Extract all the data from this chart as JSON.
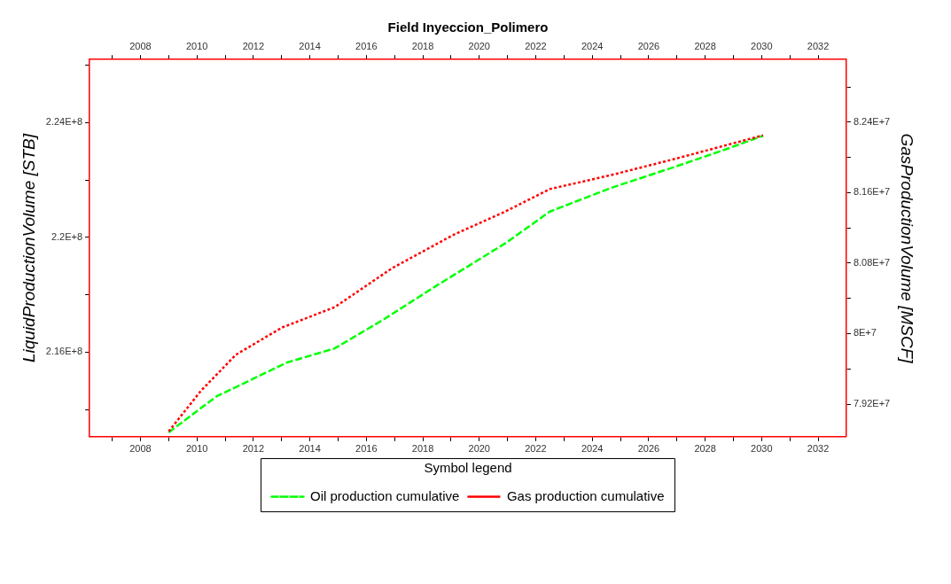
{
  "chart_data": {
    "type": "line",
    "title": "Field Inyeccion_Polimero",
    "ylabel": "LiquidProductionVolume [STB]",
    "y2label": "GasProductionVolume [MSCF]",
    "legend_title": "Symbol legend",
    "legend": "bottom",
    "grid": false,
    "marker": "none",
    "xlim": [
      2006.2,
      2033
    ],
    "xticks": [
      {
        "value": 2007,
        "label": null
      },
      2008,
      {
        "value": 2009,
        "label": null
      },
      2010,
      {
        "value": 2011,
        "label": null
      },
      2012,
      {
        "value": 2013,
        "label": null
      },
      2014,
      {
        "value": 2015,
        "label": null
      },
      2016,
      {
        "value": 2017,
        "label": null
      },
      2018,
      {
        "value": 2019,
        "label": null
      },
      2020,
      {
        "value": 2021,
        "label": null
      },
      2022,
      {
        "value": 2023,
        "label": null
      },
      2024,
      {
        "value": 2025,
        "label": null
      },
      2026,
      {
        "value": 2027,
        "label": null
      },
      2028,
      {
        "value": 2029,
        "label": null
      },
      2030,
      {
        "value": 2031,
        "label": null
      },
      2032
    ],
    "x2lim": [
      2006.2,
      2033
    ],
    "x2ticks": [
      {
        "value": 2007,
        "label": null
      },
      2008,
      {
        "value": 2009,
        "label": null
      },
      2010,
      {
        "value": 2011,
        "label": null
      },
      2012,
      {
        "value": 2013,
        "label": null
      },
      2014,
      {
        "value": 2015,
        "label": null
      },
      2016,
      {
        "value": 2017,
        "label": null
      },
      2018,
      {
        "value": 2019,
        "label": null
      },
      2020,
      {
        "value": 2021,
        "label": null
      },
      2022,
      {
        "value": 2023,
        "label": null
      },
      2024,
      {
        "value": 2025,
        "label": null
      },
      2026,
      {
        "value": 2027,
        "label": null
      },
      2028,
      {
        "value": 2029,
        "label": null
      },
      2030,
      {
        "value": 2031,
        "label": null
      },
      2032
    ],
    "ylim": [
      213050000,
      226200000
    ],
    "yticks": [
      {
        "value": 214000000,
        "label": null
      },
      {
        "value": 216000000,
        "label": "2.16E+8"
      },
      {
        "value": 218000000,
        "label": null
      },
      {
        "value": 220000000,
        "label": "2.2E+8"
      },
      {
        "value": 222000000,
        "label": null
      },
      {
        "value": 224000000,
        "label": "2.24E+8"
      },
      {
        "value": 226000000,
        "label": null
      }
    ],
    "y2lim": [
      78830000,
      83110000
    ],
    "y2ticks": [
      {
        "value": 79200000,
        "label": "7.92E+7"
      },
      {
        "value": 79600000,
        "label": null
      },
      {
        "value": 80000000,
        "label": "8E+7"
      },
      {
        "value": 80400000,
        "label": null
      },
      {
        "value": 80800000,
        "label": "8.08E+7"
      },
      {
        "value": 81200000,
        "label": null
      },
      {
        "value": 81600000,
        "label": "8.16E+7"
      },
      {
        "value": 82000000,
        "label": null
      },
      {
        "value": 82400000,
        "label": "8.24E+7"
      },
      {
        "value": 82800000,
        "label": null
      }
    ],
    "series": [
      {
        "name": "Oil production cumulative",
        "color": "#00ff00",
        "line_style": "dashed",
        "axis": "y",
        "x": [
          2009,
          2010.7,
          2011.93,
          2013.17,
          2014.88,
          2016.6,
          2018.46,
          2020.95,
          2022.5,
          2024.68,
          2027.02,
          2028.73,
          2030.05
        ],
        "values": [
          213200000,
          214460000,
          215040000,
          215630000,
          216130000,
          217130000,
          218300000,
          219810000,
          220900000,
          221730000,
          222490000,
          223070000,
          223540000
        ]
      },
      {
        "name": "Gas production cumulative",
        "color": "#ff0000",
        "line_style": "dotted",
        "axis": "y2",
        "x": [
          2009,
          2010.14,
          2011.38,
          2013.02,
          2014.88,
          2016.9,
          2019.08,
          2020.95,
          2022.5,
          2024.68,
          2027.02,
          2028.88,
          2030.05
        ],
        "values": [
          78890000,
          79350000,
          79760000,
          80070000,
          80300000,
          80740000,
          81120000,
          81390000,
          81640000,
          81800000,
          81990000,
          82150000,
          82250000
        ]
      }
    ]
  }
}
